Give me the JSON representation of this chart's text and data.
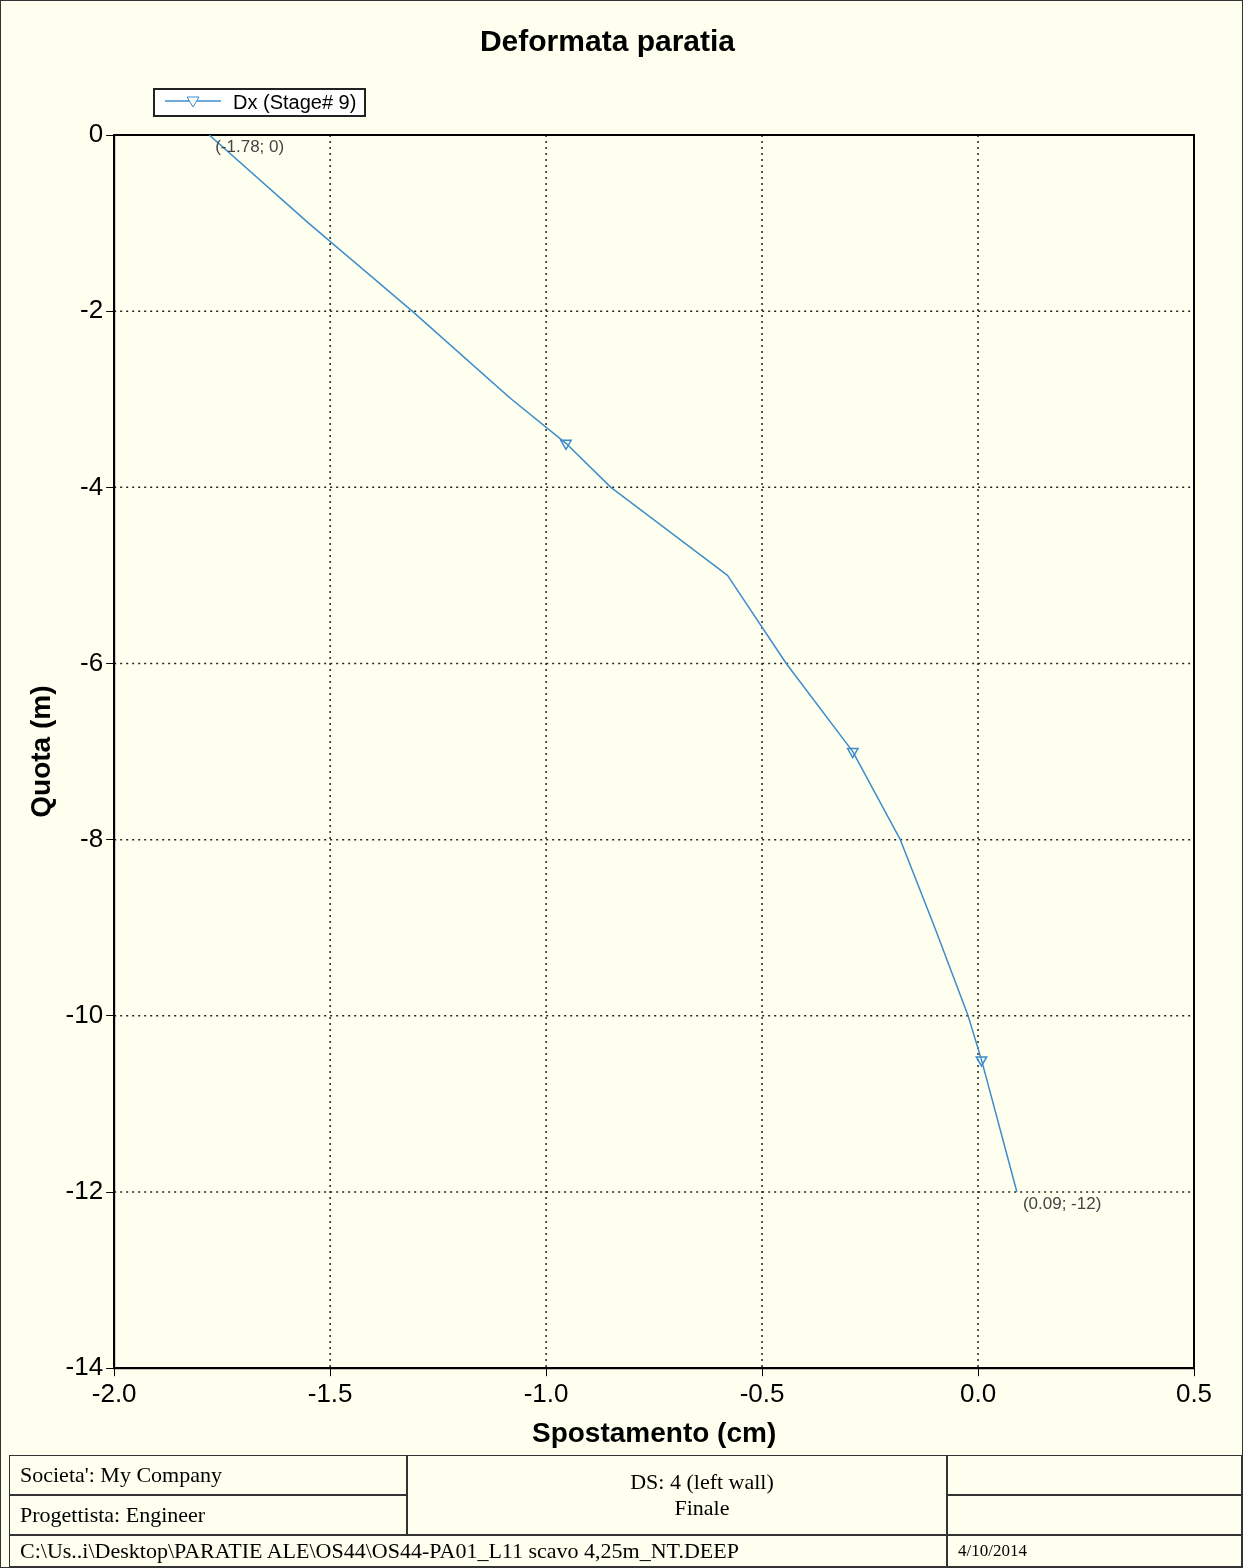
{
  "chart_data": {
    "type": "line",
    "title": "Deformata paratia",
    "xlabel": "Spostamento (cm)",
    "ylabel": "Quota (m)",
    "xlim": [
      -2,
      0.5
    ],
    "xticks": [
      {
        "value": -2,
        "label": "-2.0"
      },
      -1.5,
      {
        "value": -1,
        "label": "-1.0"
      },
      -0.5,
      {
        "value": 0,
        "label": "0.0"
      },
      0.5
    ],
    "ylim": [
      -14,
      0
    ],
    "yticks": [
      0,
      -2,
      -4,
      -6,
      -8,
      -10,
      -12,
      -14
    ],
    "grid": true,
    "legend": "top left",
    "series": [
      {
        "name": "Dx (Stage# 9)",
        "type": "line",
        "color": "#3c8ccc",
        "marker": "none",
        "x": [
          -1.78,
          -1.55,
          -1.31,
          -1.08,
          -0.954,
          -0.85,
          -0.58,
          -0.444,
          -0.29,
          -0.18,
          -0.1,
          -0.023,
          0.008,
          0.09
        ],
        "values": [
          0,
          -1,
          -2,
          -3,
          -3.5,
          -4,
          -5,
          -6,
          -7,
          -8,
          -9,
          -10,
          -10.5,
          -12
        ]
      },
      {
        "type": "scatter",
        "color": "#3c8ccc",
        "marker": "triangle",
        "x": [
          -0.954,
          -0.29,
          0.008
        ],
        "values": [
          -3.5,
          -7,
          -10.5
        ]
      }
    ],
    "annotations": [
      {
        "text": "(-1.78; 0)",
        "x": -1.78,
        "y": 0
      },
      {
        "text": "(0.09; -12)",
        "x": 0.09,
        "y": -12
      },
      "Societa': My Company",
      "Progettista: Engineer",
      "DS: 4 (left wall)",
      "Finale",
      "C:\\Us..i\\Desktop\\PARATIE ALE\\OS44\\OS44-PA01_L11 scavo 4,25m_NT.DEEP",
      "4/10/2014"
    ]
  }
}
